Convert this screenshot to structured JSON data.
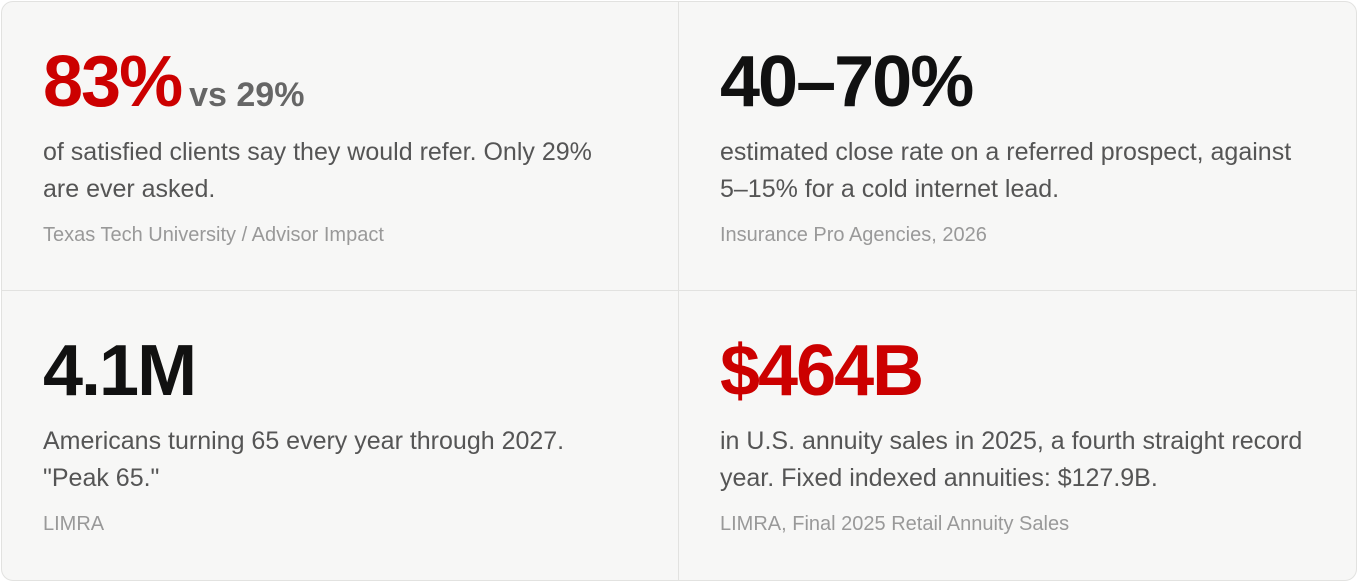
{
  "stats": [
    {
      "figure": "83%",
      "comparison": "vs 29%",
      "text": "of satisfied clients say they would refer. Only 29% are ever asked.",
      "source": "Texas Tech University / Advisor Impact",
      "accent": true
    },
    {
      "figure": "40–70%",
      "text": "estimated close rate on a referred prospect, against 5–15% for a cold internet lead.",
      "source": "Insurance Pro Agencies, 2026",
      "accent": false
    },
    {
      "figure": "4.1M",
      "text": "Americans turning 65 every year through 2027. \"Peak 65.\"",
      "source": "LIMRA",
      "accent": false
    },
    {
      "figure": "$464B",
      "text": "in U.S. annuity sales in 2025, a fourth straight record year. Fixed indexed annuities: $127.9B.",
      "source": "LIMRA, Final 2025 Retail Annuity Sales",
      "accent": true
    }
  ]
}
